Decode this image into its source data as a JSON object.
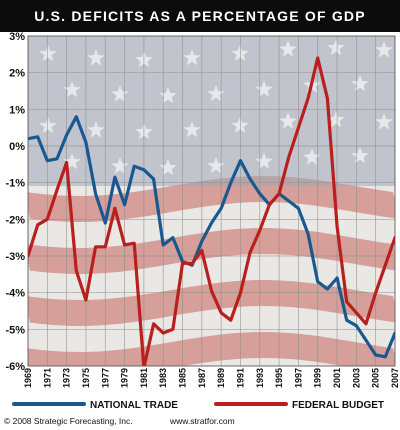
{
  "chart_data": {
    "type": "line",
    "title": "U.S. DEFICITS AS A PERCENTAGE OF GDP",
    "xlabel": "",
    "ylabel": "",
    "xlim": [
      1969,
      2007
    ],
    "ylim": [
      -6,
      3
    ],
    "y_ticks": [
      "3%",
      "2%",
      "1%",
      "0%",
      "-1%",
      "-2%",
      "-3%",
      "-4%",
      "-5%",
      "-6%"
    ],
    "x_ticks": [
      "1969",
      "1971",
      "1973",
      "1975",
      "1977",
      "1979",
      "1981",
      "1983",
      "1985",
      "1987",
      "1989",
      "1991",
      "1993",
      "1995",
      "1997",
      "1999",
      "2001",
      "2003",
      "2005",
      "2007"
    ],
    "grid": true,
    "legend_position": "bottom",
    "background": "american-flag",
    "series": [
      {
        "name": "NATIONAL TRADE",
        "color": "#1a5890",
        "x": [
          1969,
          1970,
          1971,
          1972,
          1973,
          1974,
          1975,
          1976,
          1977,
          1978,
          1979,
          1980,
          1981,
          1982,
          1983,
          1984,
          1985,
          1986,
          1987,
          1988,
          1989,
          1990,
          1991,
          1992,
          1993,
          1994,
          1995,
          1996,
          1997,
          1998,
          1999,
          2000,
          2001,
          2002,
          2003,
          2004,
          2005,
          2006,
          2007
        ],
        "values": [
          0.2,
          0.25,
          -0.4,
          -0.35,
          0.3,
          0.8,
          0.1,
          -1.3,
          -2.1,
          -0.85,
          -1.6,
          -0.55,
          -0.65,
          -0.9,
          -2.7,
          -2.5,
          -3.15,
          -3.25,
          -2.6,
          -2.1,
          -1.7,
          -1.0,
          -0.4,
          -0.9,
          -1.3,
          -1.6,
          -1.3,
          -1.5,
          -1.7,
          -2.4,
          -3.7,
          -3.9,
          -3.6,
          -4.75,
          -4.9,
          -5.3,
          -5.7,
          -5.75,
          -5.1
        ]
      },
      {
        "name": "FEDERAL BUDGET",
        "color": "#b8201e",
        "x": [
          1969,
          1970,
          1971,
          1972,
          1973,
          1974,
          1975,
          1976,
          1977,
          1978,
          1979,
          1980,
          1981,
          1982,
          1983,
          1984,
          1985,
          1986,
          1987,
          1988,
          1989,
          1990,
          1991,
          1992,
          1993,
          1994,
          1995,
          1996,
          1997,
          1998,
          1999,
          2000,
          2001,
          2002,
          2003,
          2004,
          2005,
          2006,
          2007
        ],
        "values": [
          -3.0,
          -2.15,
          -2.0,
          -1.2,
          -0.45,
          -3.4,
          -4.2,
          -2.75,
          -2.75,
          -1.7,
          -2.7,
          -2.65,
          -6.05,
          -4.85,
          -5.1,
          -5.0,
          -3.2,
          -3.2,
          -2.85,
          -3.95,
          -4.55,
          -4.75,
          -4.0,
          -2.9,
          -2.3,
          -1.6,
          -1.3,
          -0.3,
          0.5,
          1.3,
          2.4,
          1.3,
          -2.2,
          -4.25,
          -4.55,
          -4.85,
          -4.0,
          -3.25,
          -2.5
        ]
      }
    ]
  },
  "footer": {
    "copyright": "© 2008 Strategic Forecasting, Inc.",
    "url": "www.stratfor.com"
  },
  "colors": {
    "title_bar": "#0c0c0c",
    "flag_red": "#c87a72",
    "flag_white": "#e6e3e0",
    "flag_blue": "#8a95a8",
    "grid": "#8e8e8e"
  }
}
